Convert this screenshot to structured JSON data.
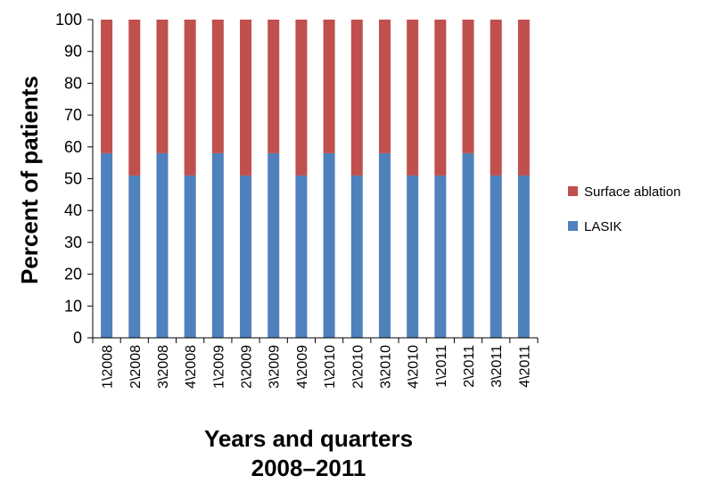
{
  "chart_data": {
    "type": "bar",
    "stacked": true,
    "categories": [
      "1\\2008",
      "2\\2008",
      "3\\2008",
      "4\\2008",
      "1\\2009",
      "2\\2009",
      "3\\2009",
      "4\\2009",
      "1\\2010",
      "2\\2010",
      "3\\2010",
      "4\\2010",
      "1\\2011",
      "2\\2011",
      "3\\2011",
      "4\\2011"
    ],
    "series": [
      {
        "name": "LASIK",
        "color": "#4f81bd",
        "values": [
          58,
          51,
          58,
          51,
          58,
          51,
          58,
          51,
          58,
          51,
          58,
          51,
          51,
          58,
          51,
          51
        ]
      },
      {
        "name": "Surface ablation",
        "color": "#c0504d",
        "values": [
          42,
          49,
          42,
          49,
          42,
          49,
          42,
          49,
          42,
          49,
          42,
          49,
          49,
          42,
          49,
          49
        ]
      }
    ],
    "ylabel": "Percent of patients",
    "xlabel_lines": [
      "Years and quarters",
      "2008–2011"
    ],
    "ylim": [
      0,
      100
    ],
    "yticks": [
      0,
      10,
      20,
      30,
      40,
      50,
      60,
      70,
      80,
      90,
      100
    ],
    "grid": false,
    "legend": {
      "position": "right",
      "order": [
        "Surface ablation",
        "LASIK"
      ]
    }
  }
}
